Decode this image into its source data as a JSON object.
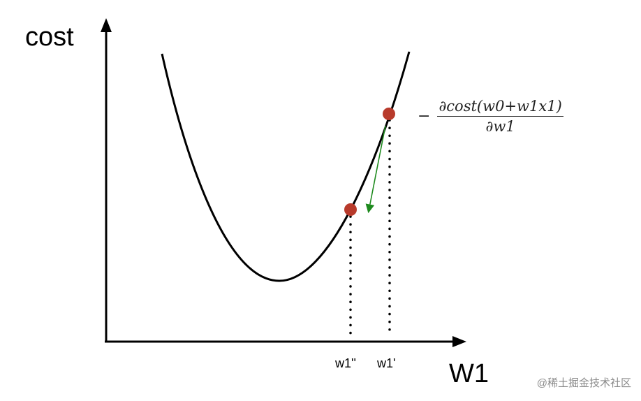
{
  "axes": {
    "y_label": "cost",
    "x_label": "W1"
  },
  "ticks": {
    "w1_double_prime": "w1''",
    "w1_prime": "w1'"
  },
  "formula": {
    "sign": "−",
    "numerator": "∂cost(w0+w1x1)",
    "denominator": "∂w1"
  },
  "watermark": "@稀土掘金技术社区",
  "colors": {
    "curve": "#000000",
    "point": "#b83a2b",
    "gradient_arrow": "#1e8a1e",
    "axes": "#000000"
  }
}
